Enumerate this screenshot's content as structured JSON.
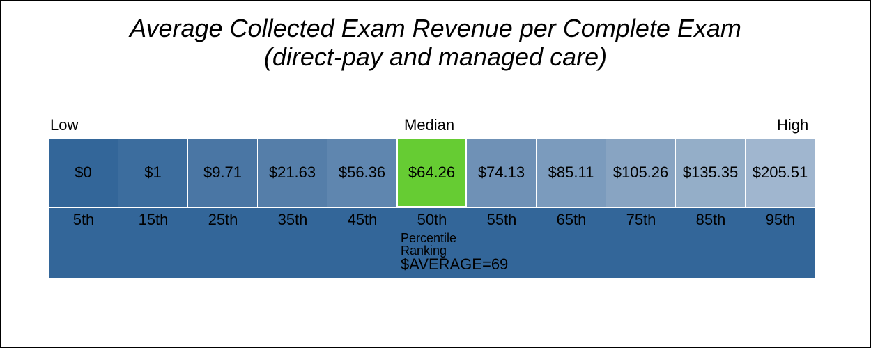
{
  "title_line1": "Average Collected Exam Revenue per Complete Exam",
  "title_line2": "(direct-pay and managed care)",
  "labels": {
    "low": "Low",
    "median": "Median",
    "high": "High"
  },
  "colors": {
    "band": "#336699",
    "median_highlight": "#66cc33",
    "cells": [
      "#336699",
      "#3c6d9e",
      "#4a76a4",
      "#557ea9",
      "#5f86af",
      "#66cc33",
      "#6f91b6",
      "#7b9bbd",
      "#88a4c2",
      "#94aec8",
      "#a0b6cf"
    ]
  },
  "chart_data": {
    "type": "table",
    "title": "Average Collected Exam Revenue per Complete Exam (direct-pay and managed care)",
    "percentiles": [
      "5th",
      "15th",
      "25th",
      "35th",
      "45th",
      "50th",
      "55th",
      "65th",
      "75th",
      "85th",
      "95th"
    ],
    "values": [
      "$0",
      "$1",
      "$9.71",
      "$21.63",
      "$56.36",
      "$64.26",
      "$74.13",
      "$85.11",
      "$105.26",
      "$135.35",
      "$205.51"
    ],
    "median_index": 5,
    "axis_label_line1": "Percentile",
    "axis_label_line2": "Ranking",
    "average_label": "$AVERAGE=69"
  }
}
